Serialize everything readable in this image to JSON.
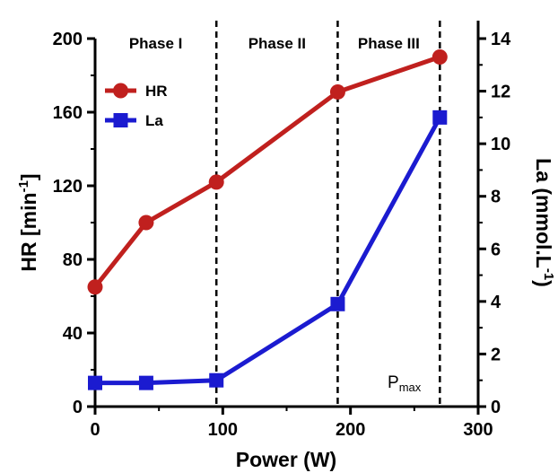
{
  "chart_data": {
    "type": "line",
    "xlabel": "Power (W)",
    "ylabel_left": "HR [min",
    "ylabel_left_sup": "-1",
    "ylabel_left_end": "]",
    "ylabel_right": "La (mmol.L",
    "ylabel_right_sup": "-1",
    "ylabel_right_end": ")",
    "xlim": [
      0,
      300
    ],
    "ylim_left": [
      0,
      200
    ],
    "ylim_right": [
      0,
      14
    ],
    "x_ticks": [
      "0",
      "100",
      "200",
      "300"
    ],
    "y_left_ticks": [
      "0",
      "40",
      "80",
      "120",
      "160",
      "200"
    ],
    "y_right_ticks": [
      "0",
      "2",
      "4",
      "6",
      "8",
      "10",
      "12",
      "14"
    ],
    "series": [
      {
        "name": "HR",
        "axis": "left",
        "color": "#c0201e",
        "marker": "circle",
        "x": [
          0,
          40,
          95,
          190,
          270
        ],
        "y": [
          65,
          100,
          122,
          171,
          190
        ]
      },
      {
        "name": "La",
        "axis": "right",
        "color": "#1b1bd0",
        "marker": "square",
        "x": [
          0,
          40,
          95,
          190,
          270
        ],
        "y": [
          0.9,
          0.9,
          1.0,
          3.9,
          11.0
        ]
      }
    ],
    "phase_boundaries_x": [
      95,
      190,
      270
    ],
    "phases": [
      {
        "label": "Phase I",
        "x_start": 0,
        "x_end": 95
      },
      {
        "label": "Phase II",
        "x_start": 95,
        "x_end": 190
      },
      {
        "label": "Phase III",
        "x_start": 190,
        "x_end": 270
      }
    ],
    "annotation": {
      "text": "P",
      "sub": "max",
      "x": 270
    },
    "legend": "top-left",
    "grid": false
  }
}
